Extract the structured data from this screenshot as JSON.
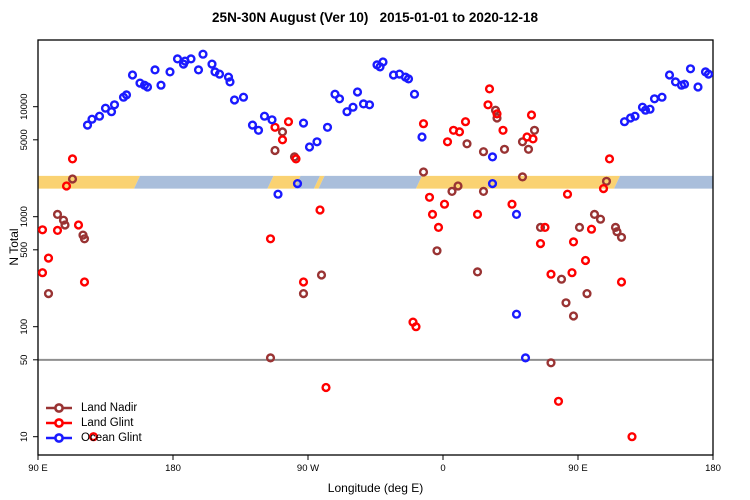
{
  "title": "25N-30N August (Ver 10)   2015-01-01 to 2020-12-18",
  "y_axis": {
    "label": "N Total",
    "scale": "log",
    "ticks": [
      10000,
      5000,
      1000,
      500,
      100,
      50,
      10
    ]
  },
  "x_axis": {
    "label": "Longitude (deg E)",
    "range": [
      90,
      540
    ],
    "ticks": [
      {
        "value": 90,
        "label": "90 E"
      },
      {
        "value": 180,
        "label": "180"
      },
      {
        "value": 270,
        "label": "90 W"
      },
      {
        "value": 360,
        "label": "0"
      },
      {
        "value": 450,
        "label": "90 E"
      },
      {
        "value": 540,
        "label": "180"
      }
    ]
  },
  "reference_line": {
    "value": 50,
    "color": "#8F8F8F"
  },
  "highlight_band": {
    "value_range": [
      1800,
      2350
    ],
    "colors": {
      "orange": "#FAD272",
      "blue": "#A9BEDB"
    },
    "segments": [
      {
        "from": 90,
        "to": 156,
        "color": "orange"
      },
      {
        "from": 156,
        "to": 245,
        "color": "blue"
      },
      {
        "from": 245,
        "to": 263,
        "color": "orange"
      },
      {
        "from": 263,
        "to": 276,
        "color": "blue"
      },
      {
        "from": 276,
        "to": 279,
        "color": "orange"
      },
      {
        "from": 279,
        "to": 344,
        "color": "blue"
      },
      {
        "from": 344,
        "to": 476,
        "color": "orange"
      },
      {
        "from": 476,
        "to": 540,
        "color": "blue"
      }
    ]
  },
  "legend": {
    "items": [
      {
        "label": "Land Nadir",
        "color": "#993333"
      },
      {
        "label": "Land Glint",
        "color": "#FF0000"
      },
      {
        "label": "Ocean Glint",
        "color": "#1A1AFF"
      }
    ]
  },
  "chart_data": {
    "type": "scatter",
    "x_units": "degrees longitude east (90 to 540)",
    "y_units": "N Total (log scale)",
    "series": [
      {
        "name": "Land Nadir",
        "color": "#993333",
        "points": [
          [
            113,
            2200
          ],
          [
            103,
            1050
          ],
          [
            107,
            930
          ],
          [
            108,
            840
          ],
          [
            120,
            680
          ],
          [
            121,
            630
          ],
          [
            97,
            200
          ],
          [
            253,
            5900
          ],
          [
            248,
            4000
          ],
          [
            261,
            3500
          ],
          [
            279,
            295
          ],
          [
            267,
            200
          ],
          [
            245,
            52
          ],
          [
            347,
            2550
          ],
          [
            370,
            1900
          ],
          [
            387,
            1700
          ],
          [
            366,
            1700
          ],
          [
            413,
            2300
          ],
          [
            395,
            9300
          ],
          [
            396,
            7900
          ],
          [
            376,
            4600
          ],
          [
            387,
            3900
          ],
          [
            401,
            4100
          ],
          [
            413,
            4800
          ],
          [
            417,
            4100
          ],
          [
            421,
            6100
          ],
          [
            425,
            800
          ],
          [
            356,
            490
          ],
          [
            383,
            315
          ],
          [
            439,
            270
          ],
          [
            442,
            165
          ],
          [
            447,
            125
          ],
          [
            432,
            47
          ],
          [
            469,
            2100
          ],
          [
            461,
            1050
          ],
          [
            465,
            950
          ],
          [
            451,
            800
          ],
          [
            475,
            800
          ],
          [
            476,
            730
          ],
          [
            479,
            650
          ],
          [
            456,
            200
          ]
        ]
      },
      {
        "name": "Land Glint",
        "color": "#FF0000",
        "points": [
          [
            113,
            3350
          ],
          [
            109,
            1900
          ],
          [
            117,
            840
          ],
          [
            93,
            760
          ],
          [
            103,
            750
          ],
          [
            97,
            420
          ],
          [
            93,
            310
          ],
          [
            121,
            255
          ],
          [
            127,
            10
          ],
          [
            248,
            6500
          ],
          [
            257,
            7300
          ],
          [
            253,
            5000
          ],
          [
            262,
            3350
          ],
          [
            278,
            1150
          ],
          [
            245,
            630
          ],
          [
            267,
            255
          ],
          [
            282,
            28
          ],
          [
            347,
            7000
          ],
          [
            367,
            6100
          ],
          [
            371,
            5900
          ],
          [
            375,
            7300
          ],
          [
            363,
            4800
          ],
          [
            391,
            14500
          ],
          [
            390,
            10400
          ],
          [
            396,
            8600
          ],
          [
            400,
            6100
          ],
          [
            419,
            8400
          ],
          [
            416,
            5300
          ],
          [
            420,
            5100
          ],
          [
            351,
            1500
          ],
          [
            361,
            1300
          ],
          [
            353,
            1050
          ],
          [
            383,
            1050
          ],
          [
            357,
            800
          ],
          [
            406,
            1300
          ],
          [
            425,
            570
          ],
          [
            340,
            110
          ],
          [
            342,
            100
          ],
          [
            471,
            3350
          ],
          [
            467,
            1800
          ],
          [
            443,
            1600
          ],
          [
            459,
            770
          ],
          [
            447,
            590
          ],
          [
            428,
            800
          ],
          [
            455,
            400
          ],
          [
            432,
            300
          ],
          [
            446,
            310
          ],
          [
            479,
            255
          ],
          [
            437,
            21
          ],
          [
            486,
            10
          ]
        ]
      },
      {
        "name": "Ocean Glint",
        "color": "#1A1AFF",
        "points": [
          [
            123,
            6800
          ],
          [
            126,
            7700
          ],
          [
            131,
            8200
          ],
          [
            135,
            9700
          ],
          [
            139,
            9000
          ],
          [
            141,
            10400
          ],
          [
            147,
            12200
          ],
          [
            149,
            12800
          ],
          [
            153,
            19400
          ],
          [
            158,
            16400
          ],
          [
            161,
            15700
          ],
          [
            163,
            15100
          ],
          [
            168,
            21600
          ],
          [
            172,
            15700
          ],
          [
            178,
            20700
          ],
          [
            183,
            27200
          ],
          [
            187,
            24400
          ],
          [
            188,
            26000
          ],
          [
            192,
            27200
          ],
          [
            197,
            21600
          ],
          [
            200,
            30000
          ],
          [
            206,
            24400
          ],
          [
            208,
            20700
          ],
          [
            211,
            19800
          ],
          [
            217,
            18600
          ],
          [
            218,
            16800
          ],
          [
            221,
            11500
          ],
          [
            227,
            12200
          ],
          [
            233,
            6800
          ],
          [
            237,
            6100
          ],
          [
            241,
            8200
          ],
          [
            246,
            7600
          ],
          [
            267,
            7100
          ],
          [
            271,
            4300
          ],
          [
            276,
            4800
          ],
          [
            283,
            6500
          ],
          [
            288,
            13000
          ],
          [
            291,
            11800
          ],
          [
            296,
            9000
          ],
          [
            300,
            9900
          ],
          [
            303,
            13600
          ],
          [
            307,
            10600
          ],
          [
            311,
            10400
          ],
          [
            316,
            24000
          ],
          [
            320,
            25500
          ],
          [
            318,
            23000
          ],
          [
            327,
            19400
          ],
          [
            331,
            19800
          ],
          [
            335,
            18600
          ],
          [
            337,
            17900
          ],
          [
            341,
            13000
          ],
          [
            346,
            5300
          ],
          [
            263,
            2000
          ],
          [
            250,
            1600
          ],
          [
            393,
            2000
          ],
          [
            393,
            3500
          ],
          [
            409,
            1050
          ],
          [
            409,
            130
          ],
          [
            415,
            52
          ],
          [
            481,
            7300
          ],
          [
            485,
            7900
          ],
          [
            488,
            8200
          ],
          [
            493,
            9900
          ],
          [
            495,
            9300
          ],
          [
            498,
            9500
          ],
          [
            501,
            11800
          ],
          [
            506,
            12200
          ],
          [
            511,
            19400
          ],
          [
            515,
            16800
          ],
          [
            519,
            15700
          ],
          [
            521,
            16000
          ],
          [
            525,
            22100
          ],
          [
            530,
            15100
          ],
          [
            535,
            20700
          ],
          [
            537,
            19800
          ]
        ]
      }
    ]
  }
}
